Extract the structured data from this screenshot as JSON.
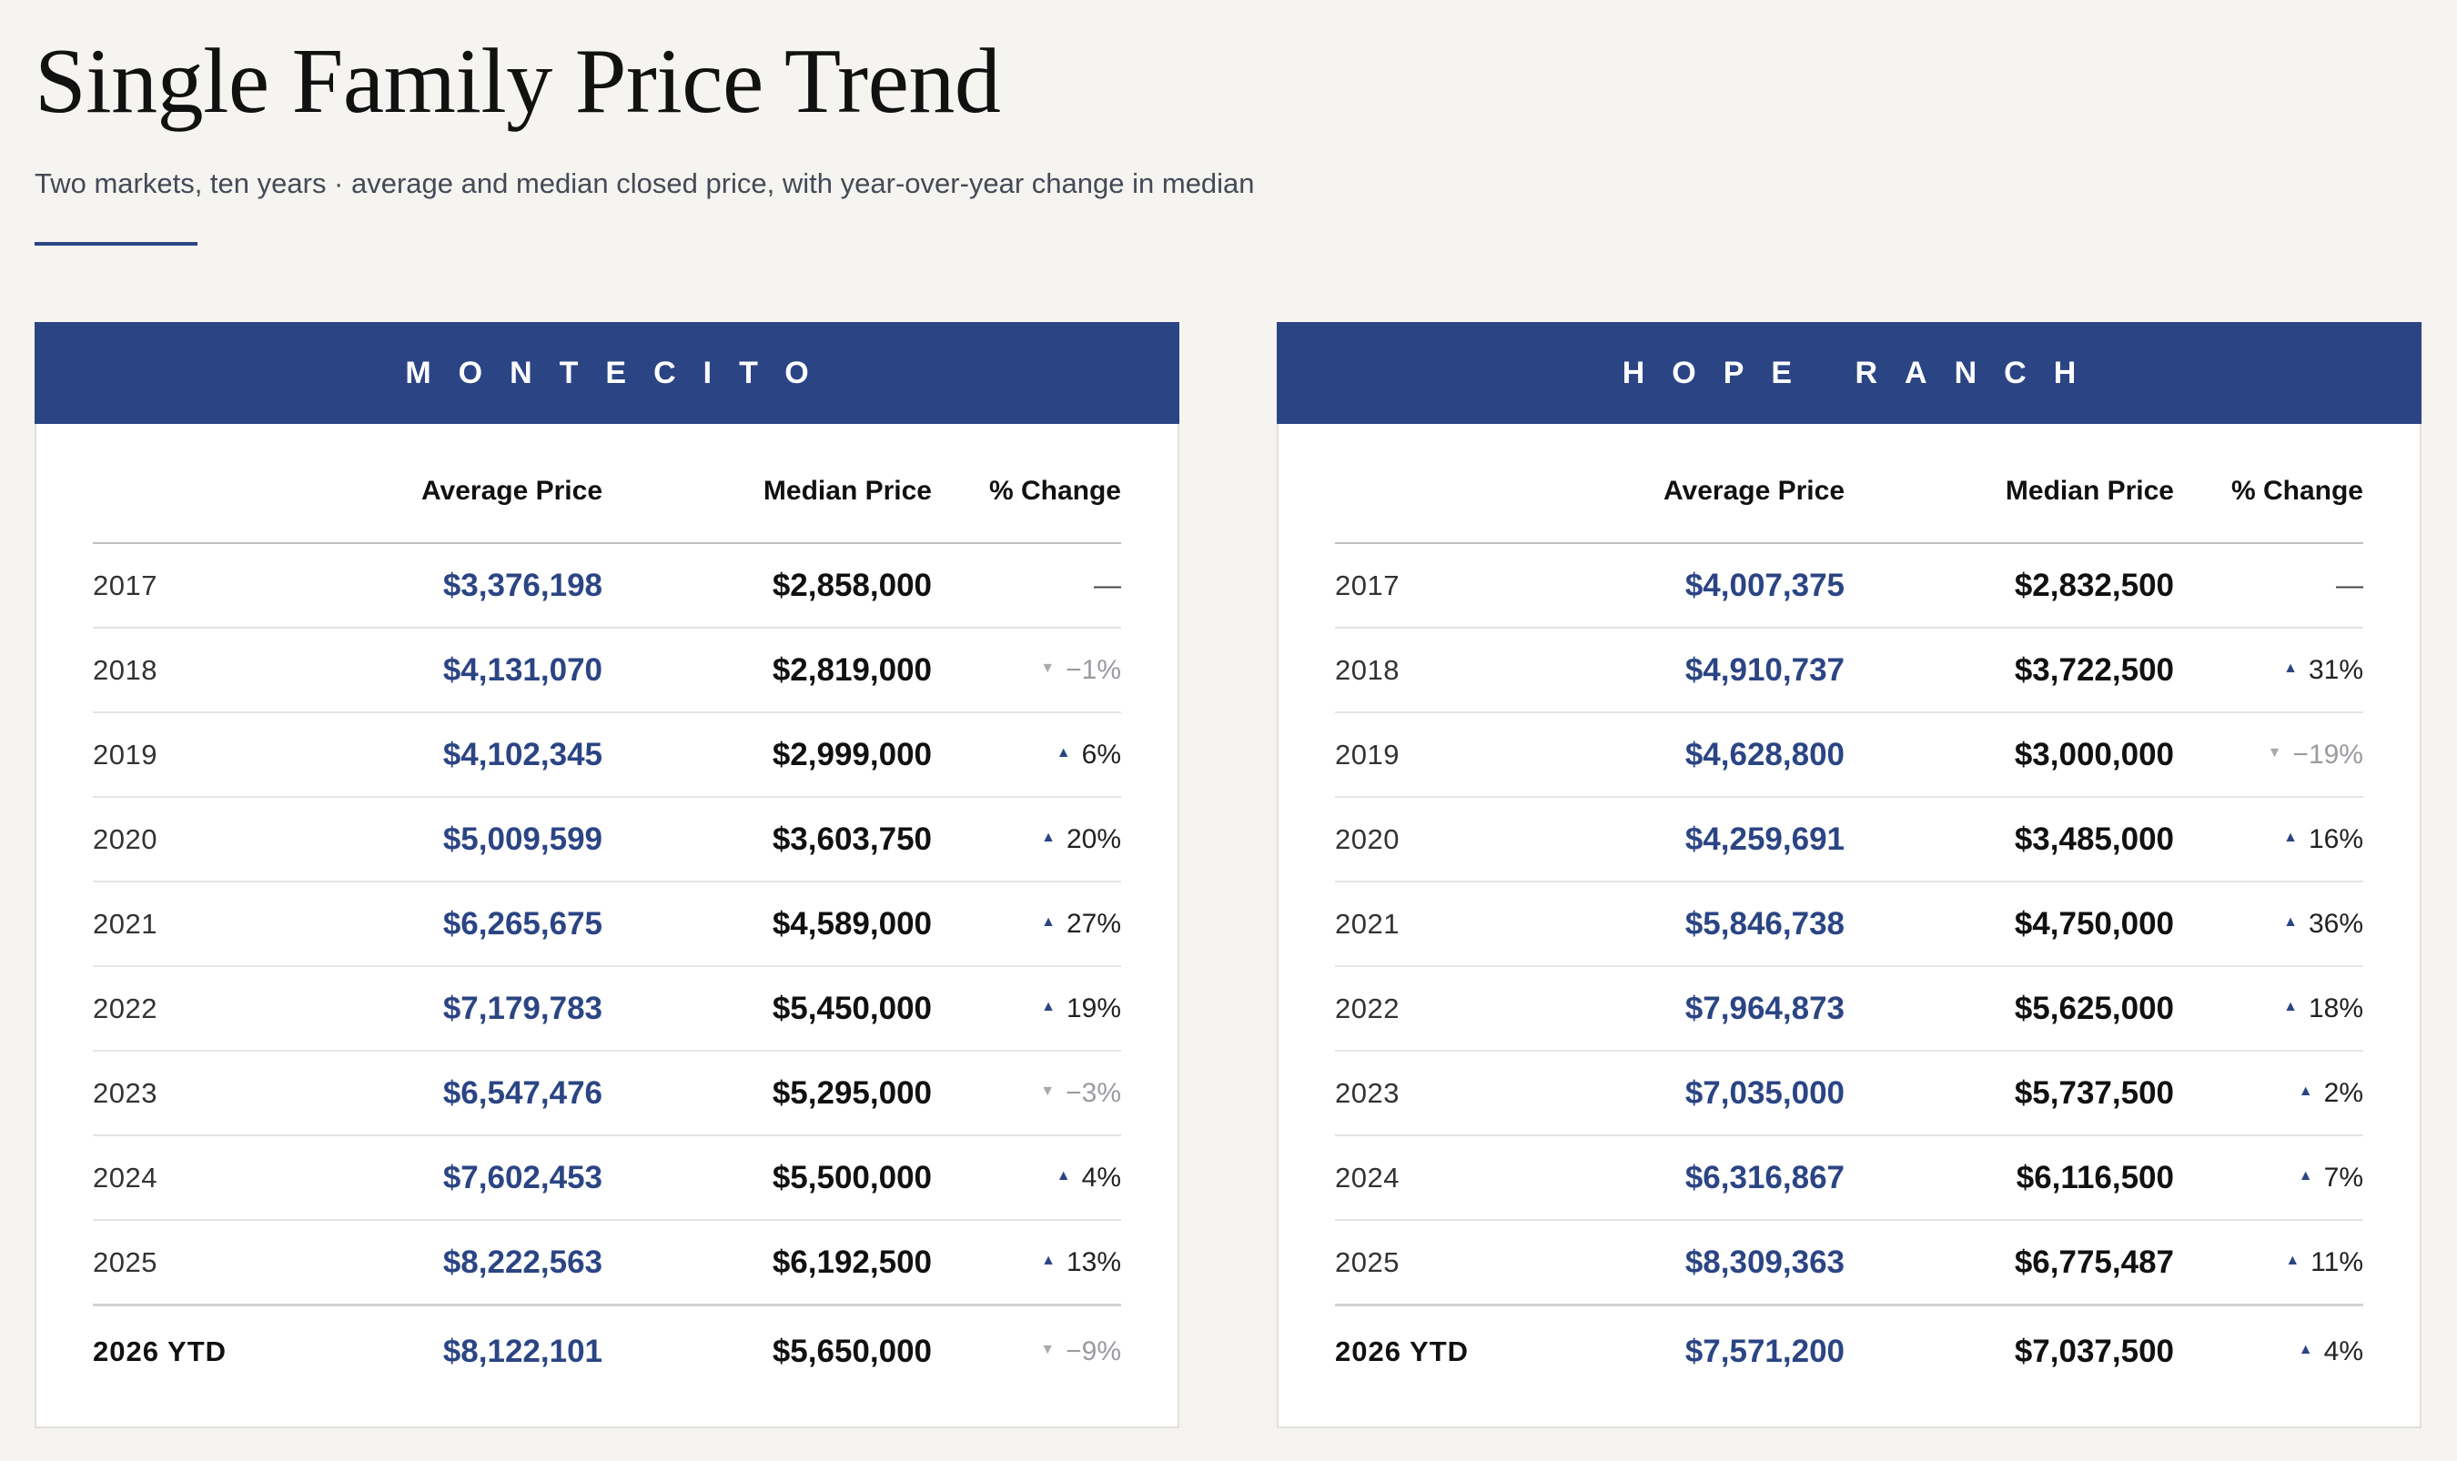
{
  "title": "Single Family Price Trend",
  "subtitle": "Two markets, ten years · average and median closed price, with year-over-year change in median",
  "colors": {
    "accent": "#2b4584",
    "background": "#f5f4f1",
    "negative": "#9a9ba0"
  },
  "columns": {
    "average": "Average Price",
    "median": "Median Price",
    "change": "% Change"
  },
  "markets": [
    {
      "name": "MONTECITO",
      "rows": [
        {
          "year": "2017",
          "average": "$3,376,198",
          "median": "$2,858,000",
          "change": "—",
          "dir": "none"
        },
        {
          "year": "2018",
          "average": "$4,131,070",
          "median": "$2,819,000",
          "change": "−1%",
          "dir": "down"
        },
        {
          "year": "2019",
          "average": "$4,102,345",
          "median": "$2,999,000",
          "change": "6%",
          "dir": "up"
        },
        {
          "year": "2020",
          "average": "$5,009,599",
          "median": "$3,603,750",
          "change": "20%",
          "dir": "up"
        },
        {
          "year": "2021",
          "average": "$6,265,675",
          "median": "$4,589,000",
          "change": "27%",
          "dir": "up"
        },
        {
          "year": "2022",
          "average": "$7,179,783",
          "median": "$5,450,000",
          "change": "19%",
          "dir": "up"
        },
        {
          "year": "2023",
          "average": "$6,547,476",
          "median": "$5,295,000",
          "change": "−3%",
          "dir": "down"
        },
        {
          "year": "2024",
          "average": "$7,602,453",
          "median": "$5,500,000",
          "change": "4%",
          "dir": "up"
        },
        {
          "year": "2025",
          "average": "$8,222,563",
          "median": "$6,192,500",
          "change": "13%",
          "dir": "up"
        },
        {
          "year": "2026 YTD",
          "average": "$8,122,101",
          "median": "$5,650,000",
          "change": "−9%",
          "dir": "down"
        }
      ]
    },
    {
      "name": "HOPE RANCH",
      "rows": [
        {
          "year": "2017",
          "average": "$4,007,375",
          "median": "$2,832,500",
          "change": "—",
          "dir": "none"
        },
        {
          "year": "2018",
          "average": "$4,910,737",
          "median": "$3,722,500",
          "change": "31%",
          "dir": "up"
        },
        {
          "year": "2019",
          "average": "$4,628,800",
          "median": "$3,000,000",
          "change": "−19%",
          "dir": "down"
        },
        {
          "year": "2020",
          "average": "$4,259,691",
          "median": "$3,485,000",
          "change": "16%",
          "dir": "up"
        },
        {
          "year": "2021",
          "average": "$5,846,738",
          "median": "$4,750,000",
          "change": "36%",
          "dir": "up"
        },
        {
          "year": "2022",
          "average": "$7,964,873",
          "median": "$5,625,000",
          "change": "18%",
          "dir": "up"
        },
        {
          "year": "2023",
          "average": "$7,035,000",
          "median": "$5,737,500",
          "change": "2%",
          "dir": "up"
        },
        {
          "year": "2024",
          "average": "$6,316,867",
          "median": "$6,116,500",
          "change": "7%",
          "dir": "up"
        },
        {
          "year": "2025",
          "average": "$8,309,363",
          "median": "$6,775,487",
          "change": "11%",
          "dir": "up"
        },
        {
          "year": "2026 YTD",
          "average": "$7,571,200",
          "median": "$7,037,500",
          "change": "4%",
          "dir": "up"
        }
      ]
    }
  ]
}
